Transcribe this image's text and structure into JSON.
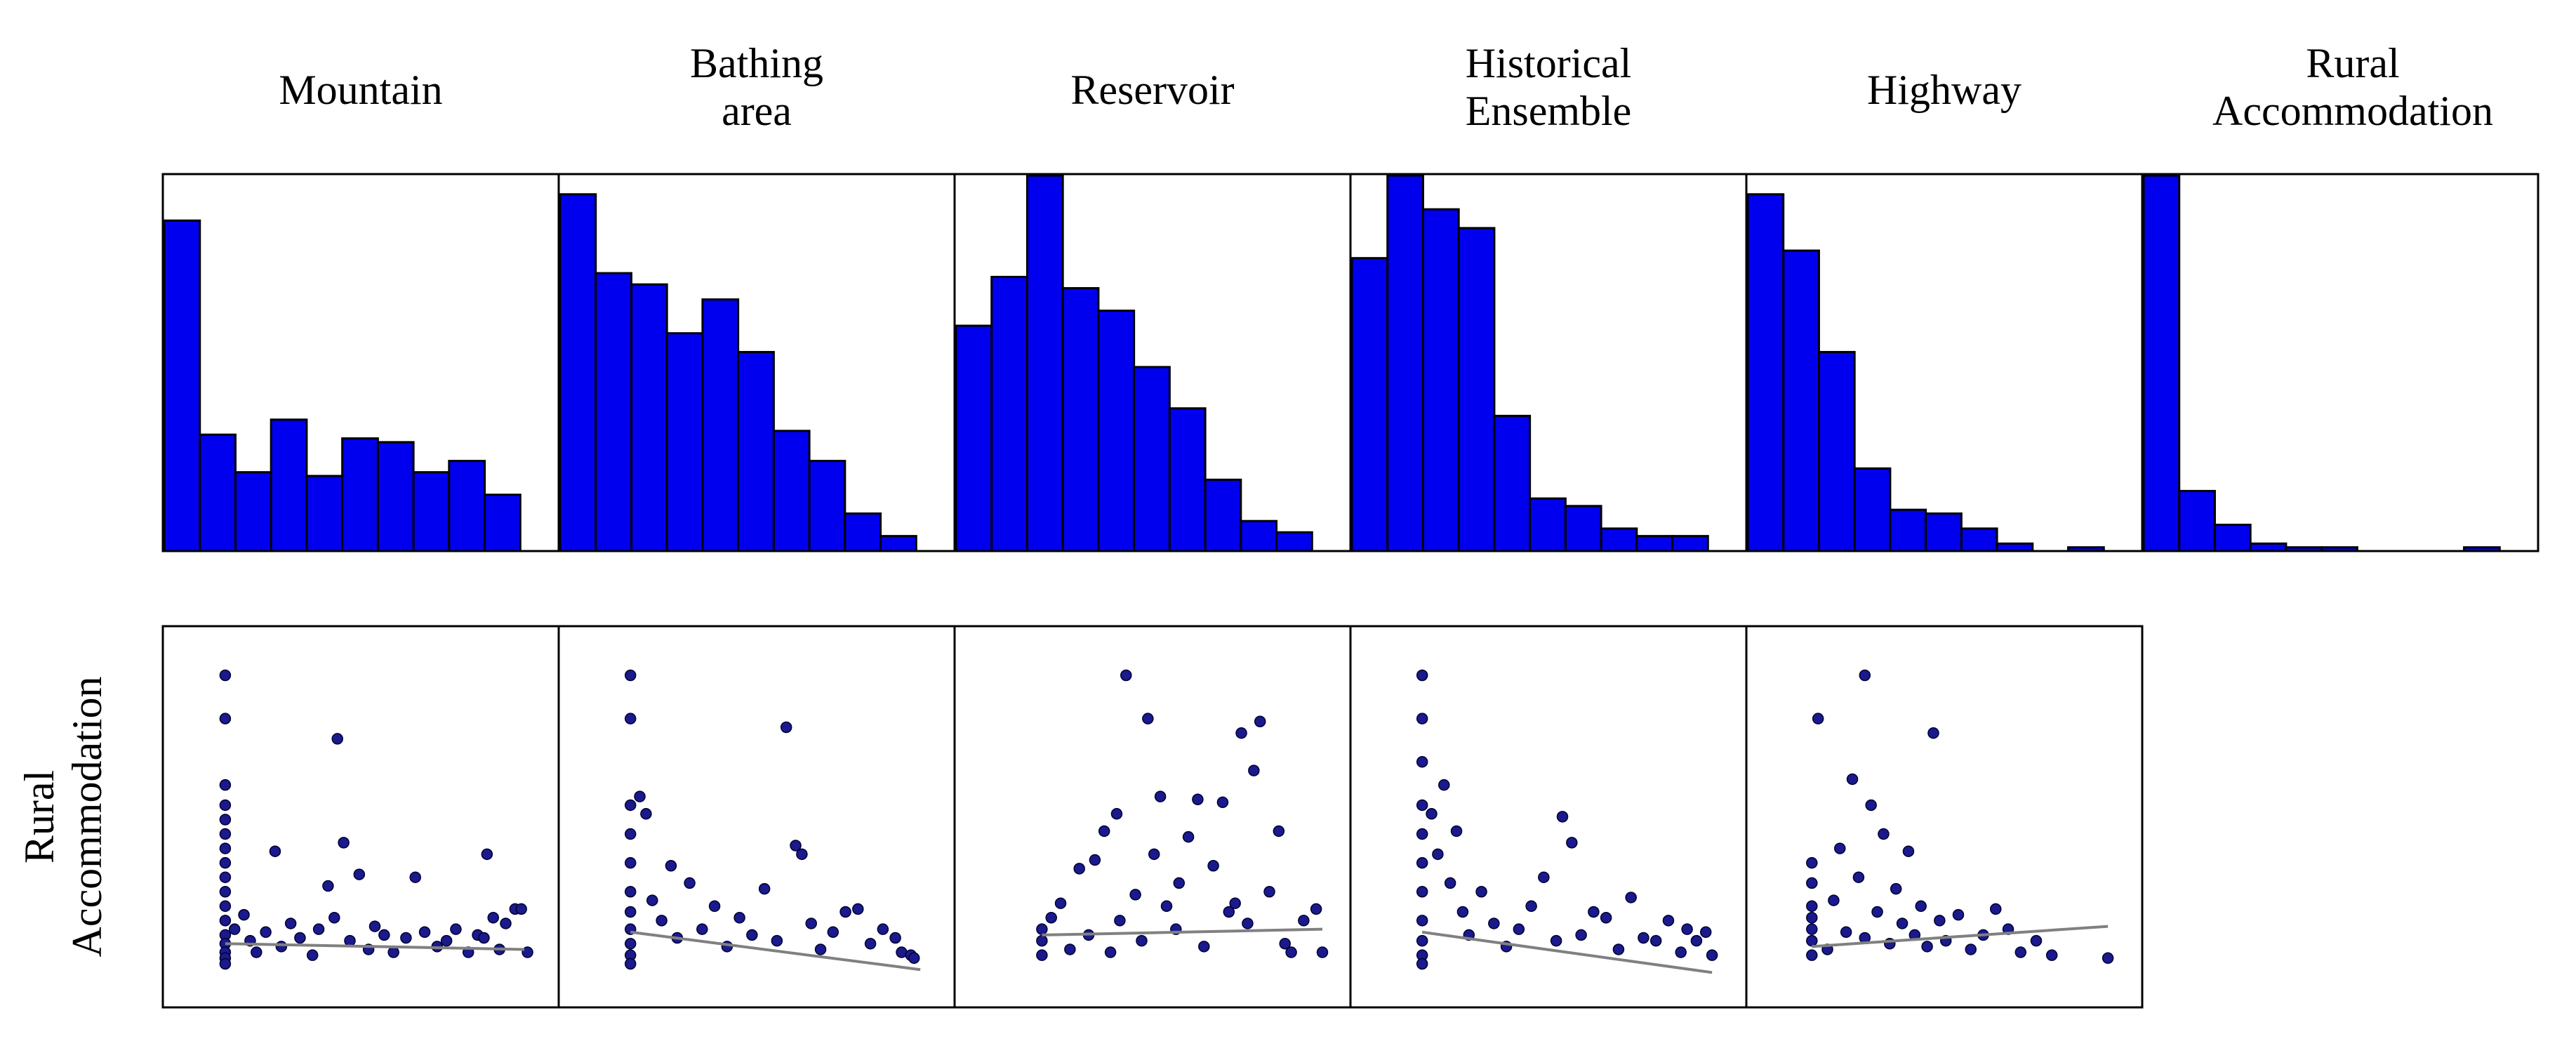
{
  "chart_data": {
    "type": "scatter-matrix",
    "title": "",
    "variables": [
      "Mountain",
      "Bathing area",
      "Reservoir",
      "Historical Ensemble",
      "Highway",
      "Rural Accommodation"
    ],
    "column_titles": [
      [
        "Mountain"
      ],
      [
        "Bathing",
        "area"
      ],
      [
        "Reservoir"
      ],
      [
        "Historical",
        "Ensemble"
      ],
      [
        "Highway"
      ],
      [
        "Rural",
        "Accommodation"
      ]
    ],
    "row_label": [
      "Rural",
      "Accommodation"
    ],
    "colors": {
      "bar_fill": "#0000ee",
      "bar_stroke": "#000000",
      "point_fill": "#1a1a8c",
      "point_stroke": "#000033",
      "fit_line": "#808080",
      "frame": "#000000"
    },
    "histograms": [
      {
        "variable": "Mountain",
        "bins": [
          0,
          1,
          2,
          3,
          4,
          5,
          6,
          7,
          8,
          9,
          10
        ],
        "counts": [
          88,
          31,
          21,
          35,
          20,
          30,
          29,
          21,
          24,
          15,
          0
        ],
        "ylim": [
          0,
          100
        ]
      },
      {
        "variable": "Bathing area",
        "bins": [
          0,
          1,
          2,
          3,
          4,
          5,
          6,
          7,
          8,
          9,
          10
        ],
        "counts": [
          95,
          74,
          71,
          58,
          67,
          53,
          32,
          24,
          10,
          4,
          0
        ],
        "ylim": [
          0,
          100
        ]
      },
      {
        "variable": "Reservoir",
        "bins": [
          0,
          1,
          2,
          3,
          4,
          5,
          6,
          7,
          8,
          9,
          10
        ],
        "counts": [
          60,
          73,
          100,
          70,
          64,
          49,
          38,
          19,
          8,
          5,
          0
        ],
        "ylim": [
          0,
          100
        ]
      },
      {
        "variable": "Historical Ensemble",
        "bins": [
          0,
          1,
          2,
          3,
          4,
          5,
          6,
          7,
          8,
          9,
          10
        ],
        "counts": [
          78,
          100,
          91,
          86,
          36,
          14,
          12,
          6,
          4,
          4,
          0
        ],
        "ylim": [
          0,
          100
        ]
      },
      {
        "variable": "Highway",
        "bins": [
          0,
          1,
          2,
          3,
          4,
          5,
          6,
          7,
          8,
          9,
          10
        ],
        "counts": [
          95,
          80,
          53,
          22,
          11,
          10,
          6,
          2,
          0,
          1,
          0
        ],
        "ylim": [
          0,
          100
        ]
      },
      {
        "variable": "Rural Accommodation",
        "bins": [
          0,
          1,
          2,
          3,
          4,
          5,
          6,
          7,
          8,
          9,
          10
        ],
        "counts": [
          100,
          16,
          7,
          2,
          1,
          1,
          0,
          0,
          0,
          1,
          0
        ],
        "ylim": [
          0,
          100
        ]
      }
    ],
    "scatters": [
      {
        "x_variable": "Mountain",
        "y_variable": "Rural Accommodation",
        "xlim": [
          0,
          10
        ],
        "ylim": [
          0,
          100
        ],
        "fit": [
          [
            0.2,
            7
          ],
          [
            9.8,
            5
          ]
        ],
        "points": [
          [
            0.2,
            100
          ],
          [
            0.2,
            85
          ],
          [
            0.2,
            62
          ],
          [
            0.2,
            55
          ],
          [
            0.2,
            50
          ],
          [
            0.2,
            45
          ],
          [
            0.2,
            40
          ],
          [
            0.2,
            35
          ],
          [
            0.2,
            30
          ],
          [
            0.2,
            25
          ],
          [
            0.2,
            20
          ],
          [
            0.2,
            15
          ],
          [
            0.2,
            10
          ],
          [
            0.2,
            7
          ],
          [
            0.2,
            4
          ],
          [
            0.2,
            2
          ],
          [
            0.2,
            0
          ],
          [
            0.5,
            12
          ],
          [
            0.8,
            17
          ],
          [
            1.0,
            8
          ],
          [
            1.2,
            4
          ],
          [
            1.5,
            11
          ],
          [
            1.8,
            39
          ],
          [
            2.0,
            6
          ],
          [
            2.3,
            14
          ],
          [
            2.6,
            9
          ],
          [
            3.0,
            3
          ],
          [
            3.2,
            12
          ],
          [
            3.5,
            27
          ],
          [
            3.7,
            16
          ],
          [
            3.8,
            78
          ],
          [
            4.0,
            42
          ],
          [
            4.2,
            8
          ],
          [
            4.5,
            31
          ],
          [
            4.8,
            5
          ],
          [
            5.0,
            13
          ],
          [
            5.3,
            10
          ],
          [
            5.6,
            4
          ],
          [
            6.0,
            9
          ],
          [
            6.3,
            30
          ],
          [
            6.6,
            11
          ],
          [
            7.0,
            6
          ],
          [
            7.3,
            8
          ],
          [
            7.6,
            12
          ],
          [
            8.0,
            4
          ],
          [
            8.3,
            10
          ],
          [
            8.5,
            9
          ],
          [
            8.6,
            38
          ],
          [
            8.8,
            16
          ],
          [
            9.0,
            5
          ],
          [
            9.2,
            14
          ],
          [
            9.5,
            19
          ],
          [
            9.7,
            19
          ],
          [
            9.9,
            4
          ]
        ]
      },
      {
        "x_variable": "Bathing area",
        "y_variable": "Rural Accommodation",
        "xlim": [
          0,
          10
        ],
        "ylim": [
          0,
          100
        ],
        "fit": [
          [
            0.5,
            11
          ],
          [
            9.8,
            -2
          ]
        ],
        "points": [
          [
            0.5,
            100
          ],
          [
            0.5,
            85
          ],
          [
            0.5,
            55
          ],
          [
            0.5,
            45
          ],
          [
            0.5,
            35
          ],
          [
            0.5,
            25
          ],
          [
            0.5,
            18
          ],
          [
            0.5,
            12
          ],
          [
            0.5,
            7
          ],
          [
            0.5,
            3
          ],
          [
            0.5,
            0
          ],
          [
            0.8,
            58
          ],
          [
            1.0,
            52
          ],
          [
            1.2,
            22
          ],
          [
            1.5,
            15
          ],
          [
            1.8,
            34
          ],
          [
            2.0,
            9
          ],
          [
            2.4,
            28
          ],
          [
            2.8,
            12
          ],
          [
            3.2,
            20
          ],
          [
            3.6,
            6
          ],
          [
            4.0,
            16
          ],
          [
            4.4,
            10
          ],
          [
            4.8,
            26
          ],
          [
            5.2,
            8
          ],
          [
            5.5,
            82
          ],
          [
            5.8,
            41
          ],
          [
            6.0,
            38
          ],
          [
            6.3,
            14
          ],
          [
            6.6,
            5
          ],
          [
            7.0,
            11
          ],
          [
            7.4,
            18
          ],
          [
            7.8,
            19
          ],
          [
            8.2,
            7
          ],
          [
            8.6,
            12
          ],
          [
            9.0,
            9
          ],
          [
            9.2,
            4
          ],
          [
            9.5,
            3
          ],
          [
            9.6,
            2
          ]
        ]
      },
      {
        "x_variable": "Reservoir",
        "y_variable": "Rural Accommodation",
        "xlim": [
          0,
          10
        ],
        "ylim": [
          0,
          100
        ],
        "fit": [
          [
            1.0,
            10
          ],
          [
            10.0,
            12
          ]
        ],
        "points": [
          [
            1.0,
            3
          ],
          [
            1.0,
            8
          ],
          [
            1.0,
            12
          ],
          [
            1.3,
            16
          ],
          [
            1.6,
            21
          ],
          [
            1.9,
            5
          ],
          [
            2.2,
            33
          ],
          [
            2.5,
            10
          ],
          [
            2.7,
            36
          ],
          [
            3.0,
            46
          ],
          [
            3.2,
            4
          ],
          [
            3.4,
            52
          ],
          [
            3.5,
            15
          ],
          [
            3.7,
            100
          ],
          [
            4.0,
            24
          ],
          [
            4.2,
            8
          ],
          [
            4.4,
            85
          ],
          [
            4.6,
            38
          ],
          [
            4.8,
            58
          ],
          [
            5.0,
            20
          ],
          [
            5.3,
            12
          ],
          [
            5.4,
            28
          ],
          [
            5.7,
            44
          ],
          [
            6.0,
            57
          ],
          [
            6.2,
            6
          ],
          [
            6.5,
            34
          ],
          [
            6.8,
            56
          ],
          [
            7.0,
            18
          ],
          [
            7.2,
            21
          ],
          [
            7.4,
            80
          ],
          [
            7.6,
            14
          ],
          [
            7.8,
            67
          ],
          [
            8.0,
            84
          ],
          [
            8.3,
            25
          ],
          [
            8.6,
            46
          ],
          [
            8.8,
            7
          ],
          [
            9.0,
            4
          ],
          [
            9.4,
            15
          ],
          [
            9.8,
            19
          ],
          [
            10.0,
            4
          ]
        ]
      },
      {
        "x_variable": "Historical Ensemble",
        "y_variable": "Rural Accommodation",
        "xlim": [
          0,
          10
        ],
        "ylim": [
          0,
          100
        ],
        "fit": [
          [
            0.5,
            11
          ],
          [
            9.8,
            -3
          ]
        ],
        "points": [
          [
            0.5,
            100
          ],
          [
            0.5,
            85
          ],
          [
            0.5,
            70
          ],
          [
            0.5,
            55
          ],
          [
            0.5,
            45
          ],
          [
            0.5,
            35
          ],
          [
            0.5,
            25
          ],
          [
            0.5,
            15
          ],
          [
            0.5,
            8
          ],
          [
            0.5,
            3
          ],
          [
            0.5,
            0
          ],
          [
            0.8,
            52
          ],
          [
            1.0,
            38
          ],
          [
            1.2,
            62
          ],
          [
            1.4,
            28
          ],
          [
            1.6,
            46
          ],
          [
            1.8,
            18
          ],
          [
            2.0,
            10
          ],
          [
            2.4,
            25
          ],
          [
            2.8,
            14
          ],
          [
            3.2,
            6
          ],
          [
            3.6,
            12
          ],
          [
            4.0,
            20
          ],
          [
            4.4,
            30
          ],
          [
            4.8,
            8
          ],
          [
            5.0,
            51
          ],
          [
            5.3,
            42
          ],
          [
            5.6,
            10
          ],
          [
            6.0,
            18
          ],
          [
            6.4,
            16
          ],
          [
            6.8,
            5
          ],
          [
            7.2,
            23
          ],
          [
            7.6,
            9
          ],
          [
            8.0,
            8
          ],
          [
            8.4,
            15
          ],
          [
            8.8,
            4
          ],
          [
            9.0,
            12
          ],
          [
            9.3,
            8
          ],
          [
            9.6,
            11
          ],
          [
            9.8,
            3
          ]
        ]
      },
      {
        "x_variable": "Highway",
        "y_variable": "Rural Accommodation",
        "xlim": [
          0,
          10
        ],
        "ylim": [
          0,
          100
        ],
        "fit": [
          [
            0.3,
            6
          ],
          [
            9.8,
            13
          ]
        ],
        "points": [
          [
            0.3,
            3
          ],
          [
            0.3,
            8
          ],
          [
            0.3,
            12
          ],
          [
            0.3,
            16
          ],
          [
            0.3,
            20
          ],
          [
            0.3,
            28
          ],
          [
            0.3,
            35
          ],
          [
            0.5,
            85
          ],
          [
            0.8,
            5
          ],
          [
            1.0,
            22
          ],
          [
            1.2,
            40
          ],
          [
            1.4,
            11
          ],
          [
            1.6,
            64
          ],
          [
            1.8,
            30
          ],
          [
            2.0,
            100
          ],
          [
            2.0,
            9
          ],
          [
            2.2,
            55
          ],
          [
            2.4,
            18
          ],
          [
            2.6,
            45
          ],
          [
            2.8,
            7
          ],
          [
            3.0,
            26
          ],
          [
            3.2,
            14
          ],
          [
            3.4,
            39
          ],
          [
            3.6,
            10
          ],
          [
            3.8,
            20
          ],
          [
            4.0,
            6
          ],
          [
            4.2,
            80
          ],
          [
            4.4,
            15
          ],
          [
            4.6,
            8
          ],
          [
            5.0,
            17
          ],
          [
            5.4,
            5
          ],
          [
            5.8,
            10
          ],
          [
            6.2,
            19
          ],
          [
            6.6,
            12
          ],
          [
            7.0,
            4
          ],
          [
            7.5,
            8
          ],
          [
            8.0,
            3
          ],
          [
            9.8,
            2
          ]
        ]
      }
    ]
  }
}
